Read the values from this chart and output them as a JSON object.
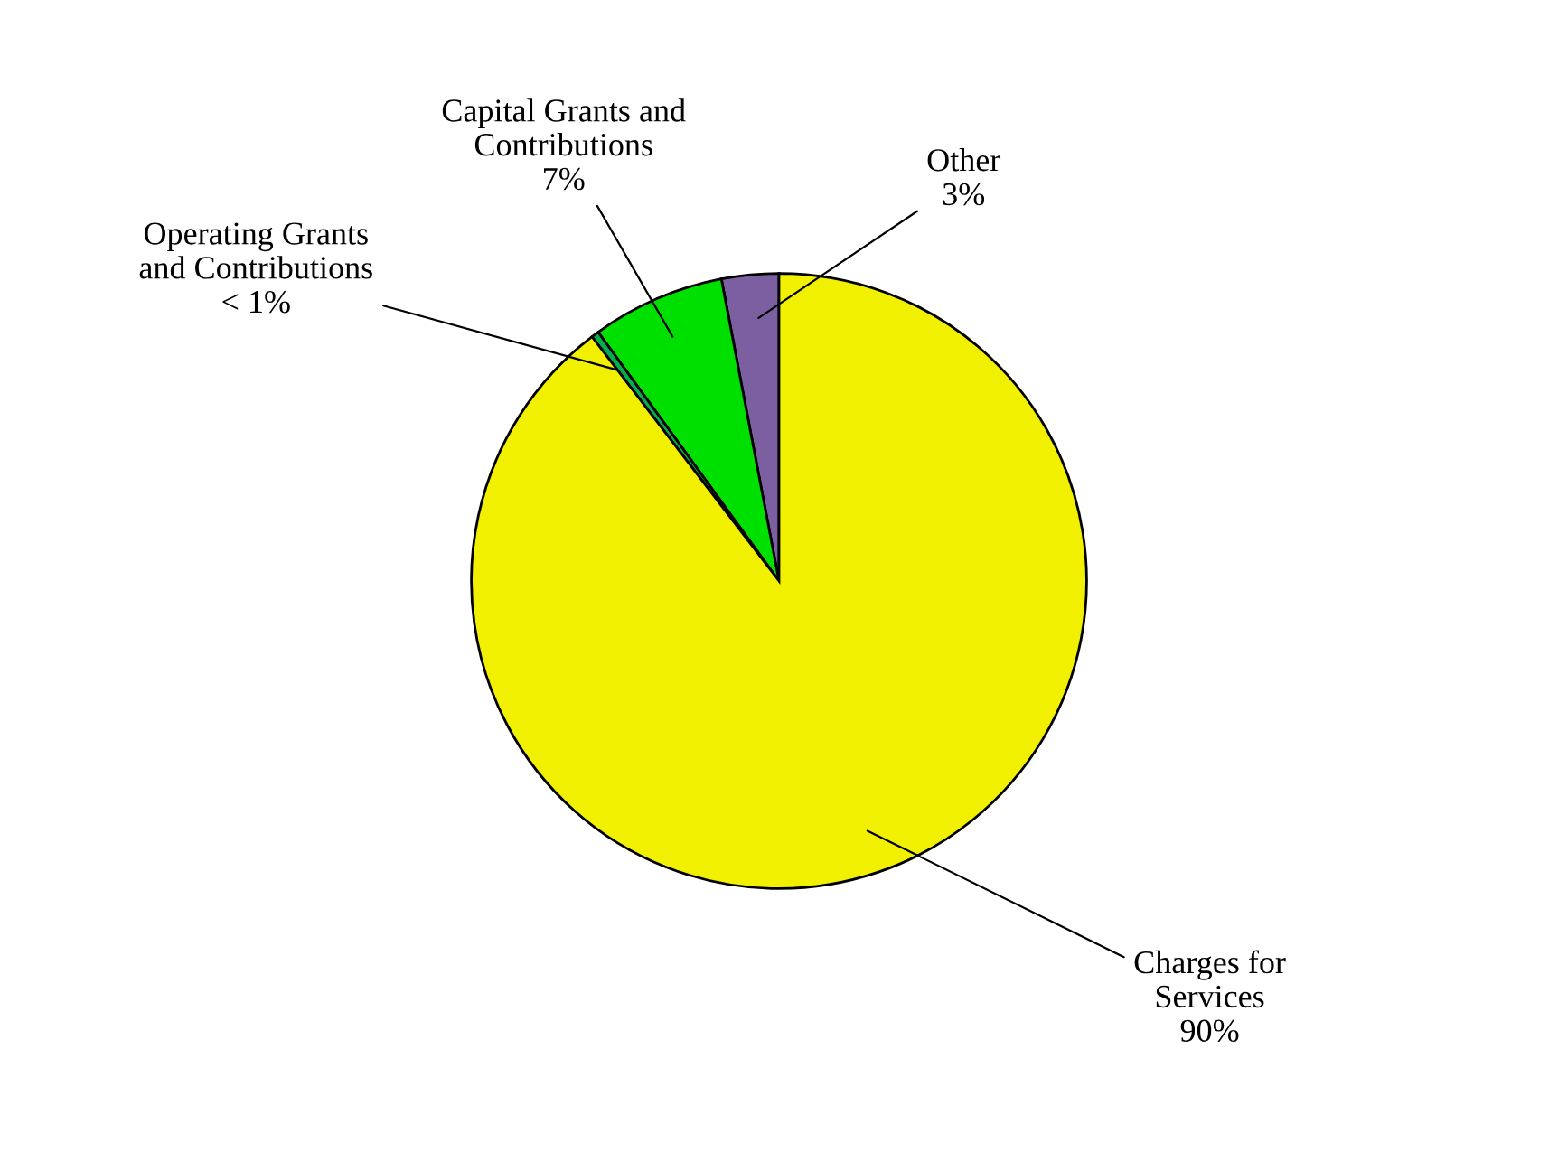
{
  "chart_data": {
    "type": "pie",
    "categories": [
      "Other",
      "Capital Grants and\nContributions",
      "Operating Grants\nand Contributions",
      "Charges for\nServices"
    ],
    "values": [
      3,
      7,
      0.4,
      89.6
    ],
    "value_labels": [
      "3%",
      "7%",
      "< 1%",
      "90%"
    ],
    "colors": [
      "#7b5fa0",
      "#00e000",
      "#00b050",
      "#f0f000"
    ],
    "legend": false
  }
}
